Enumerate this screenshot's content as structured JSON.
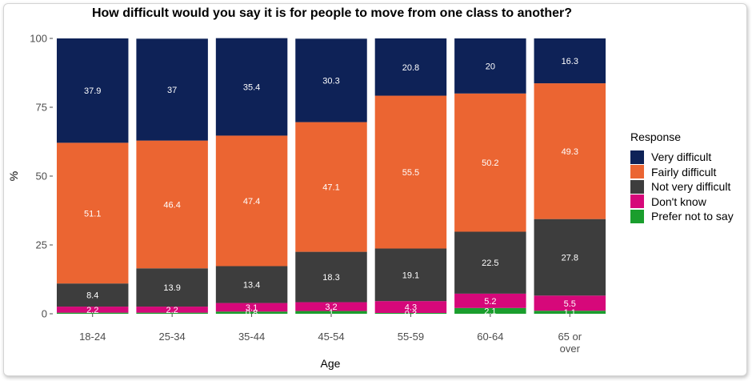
{
  "chart_data": {
    "type": "bar",
    "stacked": true,
    "title": "How difficult would you say it is for people to move from one class to another?",
    "xlabel": "Age",
    "ylabel": "%",
    "ylim": [
      0,
      100
    ],
    "yticks": [
      0,
      25,
      50,
      75,
      100
    ],
    "grid": false,
    "legend_position": "right",
    "legend_title": "Response",
    "categories": [
      "18-24",
      "25-34",
      "35-44",
      "45-54",
      "55-59",
      "60-64",
      "65 or over"
    ],
    "category_lines": [
      [
        "18-24"
      ],
      [
        "25-34"
      ],
      [
        "35-44"
      ],
      [
        "45-54"
      ],
      [
        "55-59"
      ],
      [
        "60-64"
      ],
      [
        "65 or",
        "over"
      ]
    ],
    "series": [
      {
        "name": "Prefer not to say",
        "color": "#1a9e2d",
        "values": [
          0.4,
          0.4,
          0.8,
          1,
          0.3,
          2.1,
          1.1
        ],
        "labels": [
          "",
          "",
          "0.8",
          "1",
          "0.3",
          "2.1",
          "1.1"
        ]
      },
      {
        "name": "Don't know",
        "color": "#d6087a",
        "values": [
          2.2,
          2.2,
          3.1,
          3.2,
          4.3,
          5.2,
          5.5
        ],
        "labels": [
          "2.2",
          "2.2",
          "3.1",
          "3.2",
          "4.3",
          "5.2",
          "5.5"
        ]
      },
      {
        "name": "Not very difficult",
        "color": "#3d3d3d",
        "values": [
          8.4,
          13.9,
          13.4,
          18.3,
          19.1,
          22.5,
          27.8
        ],
        "labels": [
          "8.4",
          "13.9",
          "13.4",
          "18.3",
          "19.1",
          "22.5",
          "27.8"
        ]
      },
      {
        "name": "Fairly difficult",
        "color": "#eb6532",
        "values": [
          51.1,
          46.4,
          47.4,
          47.1,
          55.5,
          50.2,
          49.3
        ],
        "labels": [
          "51.1",
          "46.4",
          "47.4",
          "47.1",
          "55.5",
          "50.2",
          "49.3"
        ]
      },
      {
        "name": "Very difficult",
        "color": "#0e2257",
        "values": [
          37.9,
          37,
          35.4,
          30.3,
          20.8,
          20,
          16.3
        ],
        "labels": [
          "37.9",
          "37",
          "35.4",
          "30.3",
          "20.8",
          "20",
          "16.3"
        ]
      }
    ],
    "legend_order": [
      "Very difficult",
      "Fairly difficult",
      "Not very difficult",
      "Don't know",
      "Prefer not to say"
    ]
  }
}
